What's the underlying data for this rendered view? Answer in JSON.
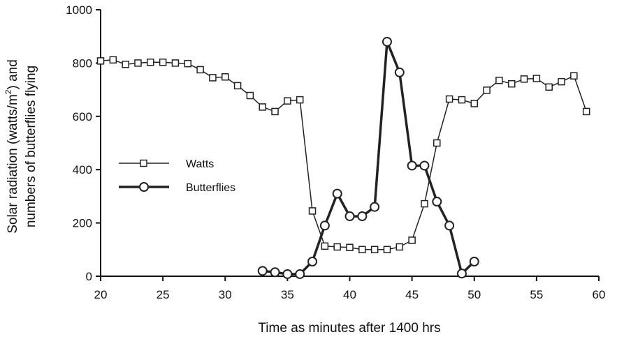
{
  "chart_data": {
    "type": "line",
    "xlabel": "Time as minutes after 1400 hrs",
    "ylabel_line1": "Solar radiation (watts/m",
    "ylabel_sup": "2",
    "ylabel_line1_end": ") and",
    "ylabel_line2": "numbers of butterflies flying",
    "xlim": [
      20,
      60
    ],
    "ylim": [
      0,
      1000
    ],
    "xticks": [
      20,
      25,
      30,
      35,
      40,
      45,
      50,
      55,
      60
    ],
    "yticks": [
      0,
      200,
      400,
      600,
      800,
      1000
    ],
    "grid": false,
    "legend_position": "middle-left",
    "series": [
      {
        "name": "Watts",
        "marker": "square",
        "color": "#222222",
        "x": [
          20,
          21,
          22,
          23,
          24,
          25,
          26,
          27,
          28,
          29,
          30,
          31,
          32,
          33,
          34,
          35,
          36,
          37,
          38,
          39,
          40,
          41,
          42,
          43,
          44,
          45,
          46,
          47,
          48,
          49,
          50,
          51,
          52,
          53,
          54,
          55,
          56,
          57,
          58,
          59
        ],
        "y": [
          808,
          812,
          795,
          800,
          803,
          803,
          800,
          798,
          775,
          745,
          748,
          715,
          678,
          635,
          618,
          658,
          662,
          245,
          113,
          110,
          108,
          100,
          100,
          100,
          110,
          135,
          272,
          500,
          665,
          662,
          648,
          698,
          735,
          722,
          740,
          742,
          710,
          730,
          752,
          618
        ]
      },
      {
        "name": "Butterflies",
        "marker": "circle",
        "color": "#222222",
        "x": [
          33,
          34,
          35,
          36,
          37,
          38,
          39,
          40,
          41,
          42,
          43,
          44,
          45,
          46,
          47,
          48,
          49,
          50
        ],
        "y": [
          20,
          15,
          8,
          8,
          55,
          190,
          310,
          225,
          225,
          260,
          880,
          765,
          415,
          415,
          280,
          190,
          10,
          55
        ]
      }
    ]
  }
}
